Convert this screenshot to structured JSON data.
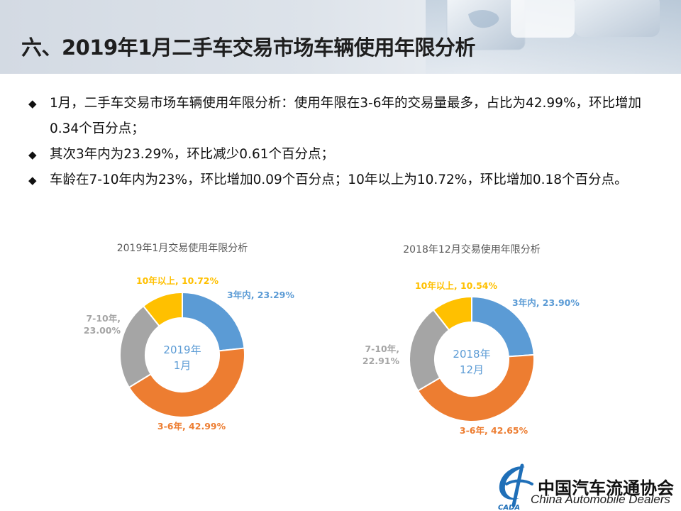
{
  "title": "六、2019年1月二手车交易市场车辆使用年限分析",
  "bullets": [
    "1月，二手车交易市场车辆使用年限分析：使用年限在3-6年的交易量最多，占比为42.99%，环比增加0.34个百分点；",
    "其次3年内为23.29%，环比减少0.61个百分点；",
    "车龄在7-10年内为23%，环比增加0.09个百分点；10年以上为10.72%，环比增加0.18个百分点。"
  ],
  "colors": {
    "3年内": "#5b9bd5",
    "3-6年": "#ed7d31",
    "7-10年": "#a5a5a5",
    "10年以上": "#ffc000"
  },
  "chart_data": [
    {
      "type": "pie",
      "variant": "donut",
      "title": "2019年1月交易使用年限分析",
      "center_label": [
        "2019年",
        "1月"
      ],
      "categories": [
        "3年内",
        "3-6年",
        "7-10年",
        "10年以上"
      ],
      "values": [
        23.29,
        42.99,
        23.0,
        10.72
      ],
      "labels": [
        [
          "3年内, 23.29%"
        ],
        [
          "3-6年, 42.99%"
        ],
        [
          "7-10年,",
          "23.00%"
        ],
        [
          "10年以上, 10.72%"
        ]
      ],
      "legend": "none"
    },
    {
      "type": "pie",
      "variant": "donut",
      "title": "2018年12月交易使用年限分析",
      "center_label": [
        "2018年",
        "12月"
      ],
      "categories": [
        "3年内",
        "3-6年",
        "7-10年",
        "10年以上"
      ],
      "values": [
        23.9,
        42.65,
        22.91,
        10.54
      ],
      "labels": [
        [
          "3年内, 23.90%"
        ],
        [
          "3-6年, 42.65%"
        ],
        [
          "7-10年,",
          "22.91%"
        ],
        [
          "10年以上, 10.54%"
        ]
      ],
      "legend": "none"
    }
  ],
  "logo": {
    "cn": "中国汽车流通协会",
    "en": "China Automobile Dealers",
    "mark": "CADA",
    "icon": "cada-logo-icon"
  }
}
